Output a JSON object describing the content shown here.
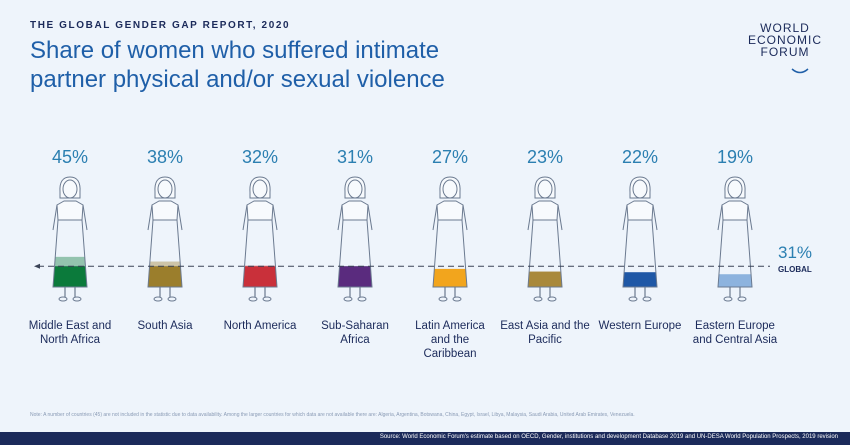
{
  "chart_data": {
    "type": "pictogram",
    "header": "THE GLOBAL GENDER GAP REPORT, 2020",
    "title": "Share of women who suffered intimate partner physical and/or sexual violence",
    "logo": [
      "WORLD",
      "ECONOMIC",
      "FORUM"
    ],
    "categories": [
      "Middle East and North Africa",
      "South Asia",
      "North America",
      "Sub-Saharan Africa",
      "Latin America and the Caribbean",
      "East Asia and the Pacific",
      "Western Europe",
      "Eastern Europe and Central Asia"
    ],
    "values": [
      45,
      38,
      32,
      31,
      27,
      23,
      22,
      19
    ],
    "value_labels": [
      "45%",
      "38%",
      "32%",
      "31%",
      "27%",
      "23%",
      "22%",
      "19%"
    ],
    "colors": [
      "#0b7a3b",
      "#9b7e2c",
      "#c9303a",
      "#5a2b7e",
      "#f2a51d",
      "#a9893b",
      "#1f58a6",
      "#8db3de"
    ],
    "global": {
      "value": 31,
      "value_label": "31%",
      "label": "GLOBAL"
    },
    "note": "Note: A number of countries (45) are not included in the statistic due to data availability. Among the larger countries for which data are not available there are: Algeria, Argentina, Botswana, China, Egypt, Israel, Libya, Malaysia, Saudi Arabia, United Arab Emirates, Venezuela.",
    "source": "Source: World Economic Forum's estimate based on OECD, Gender, institutions and development Database 2019 and UN-DESA World Population Prospects, 2019 revision"
  }
}
